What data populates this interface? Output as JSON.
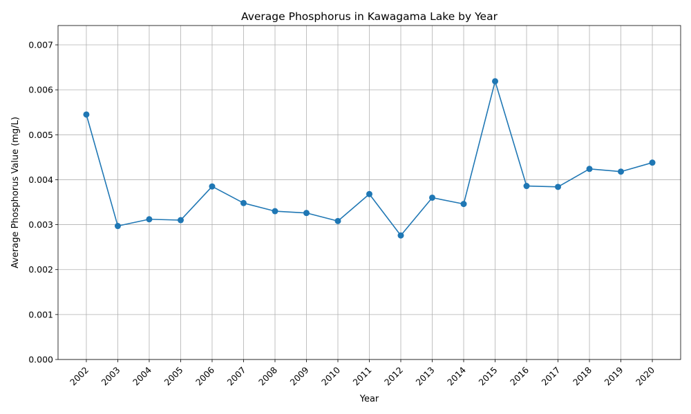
{
  "chart_data": {
    "type": "line",
    "title": "Average Phosphorus in Kawagama Lake by Year",
    "xlabel": "Year",
    "ylabel": "Average Phosphorus Value (mg/L)",
    "x": [
      "2002",
      "2003",
      "2004",
      "2005",
      "2006",
      "2007",
      "2008",
      "2009",
      "2010",
      "2011",
      "2012",
      "2013",
      "2014",
      "2015",
      "2016",
      "2017",
      "2018",
      "2019",
      "2020"
    ],
    "series": [
      {
        "values": [
          0.00545,
          0.00297,
          0.00312,
          0.0031,
          0.00385,
          0.00348,
          0.0033,
          0.00326,
          0.00308,
          0.00368,
          0.00276,
          0.0036,
          0.00346,
          0.00619,
          0.00386,
          0.00384,
          0.00424,
          0.00418,
          0.00438
        ],
        "color": "#1f77b4",
        "marker": "circle"
      }
    ],
    "ylim": [
      0,
      0.00743
    ],
    "yticks": [
      0.0,
      0.001,
      0.002,
      0.003,
      0.004,
      0.005,
      0.006,
      0.007
    ],
    "ytick_labels": [
      "0.000",
      "0.001",
      "0.002",
      "0.003",
      "0.004",
      "0.005",
      "0.006",
      "0.007"
    ],
    "grid": true,
    "legend": "none"
  }
}
